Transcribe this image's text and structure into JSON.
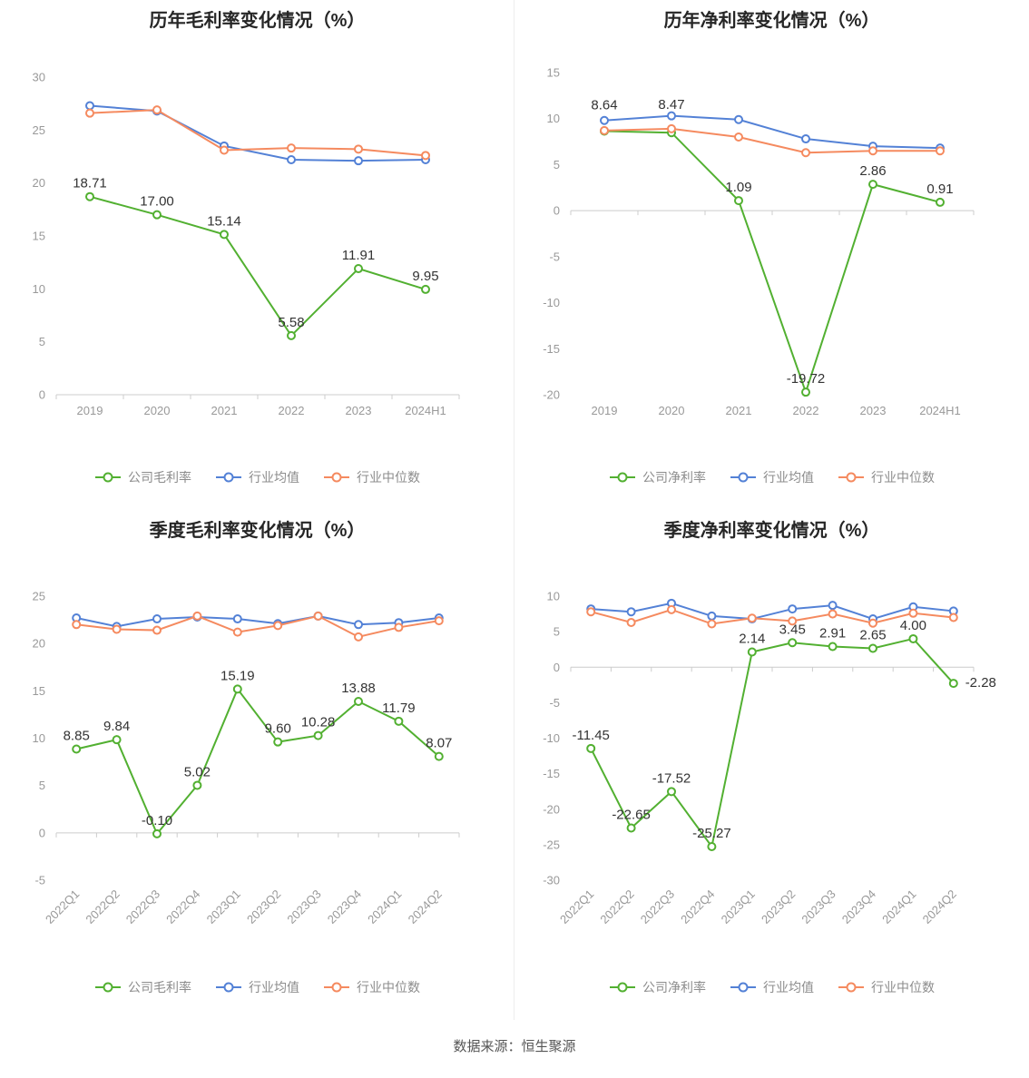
{
  "page": {
    "footer": "数据来源：恒生聚源"
  },
  "colors": {
    "green": "#52b031",
    "blue": "#5381d6",
    "orange": "#f58a5f"
  },
  "chart_data": [
    {
      "type": "line",
      "title": "历年毛利率变化情况（%）",
      "categories": [
        "2019",
        "2020",
        "2021",
        "2022",
        "2023",
        "2024H1"
      ],
      "ylim": [
        0,
        30
      ],
      "ytick_step": 5,
      "grid": false,
      "legend_position": "bottom",
      "x_rotate": false,
      "plot": {
        "l": 62,
        "r": 506,
        "t": 45,
        "b": 395
      },
      "series": [
        {
          "name": "公司毛利率",
          "color": "green",
          "values": [
            18.71,
            17,
            15.14,
            5.58,
            11.91,
            9.95
          ],
          "labels": [
            "18.71",
            "17.00",
            "15.14",
            "5.58",
            "11.91",
            "9.95"
          ]
        },
        {
          "name": "行业均值",
          "color": "blue",
          "values": [
            27.3,
            26.8,
            23.5,
            22.2,
            22.1,
            22.2
          ]
        },
        {
          "name": "行业中位数",
          "color": "orange",
          "values": [
            26.6,
            26.9,
            23.1,
            23.3,
            23.2,
            22.6
          ]
        }
      ]
    },
    {
      "type": "line",
      "title": "历年净利率变化情况（%）",
      "categories": [
        "2019",
        "2020",
        "2021",
        "2022",
        "2023",
        "2024H1"
      ],
      "ylim": [
        -20,
        15
      ],
      "ytick_step": 5,
      "grid": false,
      "legend_position": "bottom",
      "x_rotate": false,
      "plot": {
        "l": 62,
        "r": 506,
        "t": 40,
        "b": 395
      },
      "label_offsets": {
        "0": [
          0,
          -14
        ],
        "1": [
          0,
          -16
        ]
      },
      "series": [
        {
          "name": "公司净利率",
          "color": "green",
          "values": [
            8.64,
            8.47,
            1.09,
            -19.72,
            2.86,
            0.91
          ],
          "labels": [
            "8.64",
            "8.47",
            "1.09",
            "-19.72",
            "2.86",
            "0.91"
          ]
        },
        {
          "name": "行业均值",
          "color": "blue",
          "values": [
            9.8,
            10.3,
            9.9,
            7.8,
            7.0,
            6.8
          ]
        },
        {
          "name": "行业中位数",
          "color": "orange",
          "values": [
            8.7,
            8.9,
            8.0,
            6.3,
            6.5,
            6.5
          ]
        }
      ]
    },
    {
      "type": "line",
      "title": "季度毛利率变化情况（%）",
      "categories": [
        "2022Q1",
        "2022Q2",
        "2022Q3",
        "2022Q4",
        "2023Q1",
        "2023Q2",
        "2023Q3",
        "2023Q4",
        "2024Q1",
        "2024Q2"
      ],
      "ylim": [
        -5,
        25
      ],
      "ytick_step": 5,
      "grid": false,
      "legend_position": "bottom",
      "x_rotate": true,
      "plot": {
        "l": 62,
        "r": 506,
        "t": 55,
        "b": 368
      },
      "series": [
        {
          "name": "公司毛利率",
          "color": "green",
          "values": [
            8.85,
            9.84,
            -0.1,
            5.02,
            15.19,
            9.6,
            10.28,
            13.88,
            11.79,
            8.07
          ],
          "labels": [
            "8.85",
            "9.84",
            "-0.10",
            "5.02",
            "15.19",
            "9.60",
            "10.28",
            "13.88",
            "11.79",
            "8.07"
          ]
        },
        {
          "name": "行业均值",
          "color": "blue",
          "values": [
            22.7,
            21.8,
            22.6,
            22.8,
            22.6,
            22.1,
            22.9,
            22.0,
            22.2,
            22.7
          ]
        },
        {
          "name": "行业中位数",
          "color": "orange",
          "values": [
            22.0,
            21.5,
            21.4,
            22.9,
            21.2,
            21.9,
            22.9,
            20.7,
            21.7,
            22.4
          ]
        }
      ]
    },
    {
      "type": "line",
      "title": "季度净利率变化情况（%）",
      "categories": [
        "2022Q1",
        "2022Q2",
        "2022Q3",
        "2022Q4",
        "2023Q1",
        "2023Q2",
        "2023Q3",
        "2023Q4",
        "2024Q1",
        "2024Q2"
      ],
      "ylim": [
        -30,
        10
      ],
      "ytick_step": 5,
      "grid": false,
      "legend_position": "bottom",
      "x_rotate": true,
      "plot": {
        "l": 62,
        "r": 506,
        "t": 55,
        "b": 368
      },
      "label_offsets": {
        "9": [
          30,
          14
        ]
      },
      "series": [
        {
          "name": "公司净利率",
          "color": "green",
          "values": [
            -11.45,
            -22.65,
            -17.52,
            -25.27,
            2.14,
            3.45,
            2.91,
            2.65,
            4.0,
            -2.28
          ],
          "labels": [
            "-11.45",
            "-22.65",
            "-17.52",
            "-25.27",
            "2.14",
            "3.45",
            "2.91",
            "2.65",
            "4.00",
            "-2.28"
          ]
        },
        {
          "name": "行业均值",
          "color": "blue",
          "values": [
            8.2,
            7.8,
            9.0,
            7.2,
            6.8,
            8.2,
            8.7,
            6.8,
            8.5,
            7.9
          ]
        },
        {
          "name": "行业中位数",
          "color": "orange",
          "values": [
            7.8,
            6.3,
            8.1,
            6.1,
            6.9,
            6.5,
            7.5,
            6.2,
            7.6,
            7.0
          ]
        }
      ]
    }
  ]
}
